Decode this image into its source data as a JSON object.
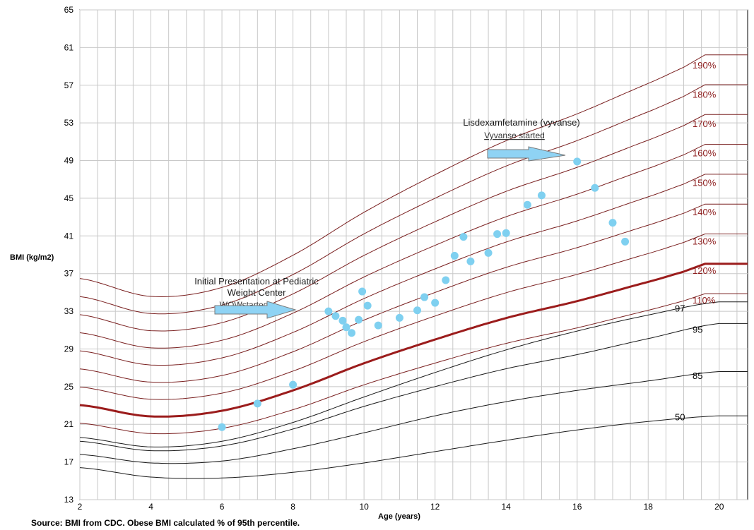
{
  "chart_data": {
    "type": "line",
    "ylabel": "BMI (kg/m2)",
    "xlabel": "Age (years)",
    "xlim": [
      2,
      20.8
    ],
    "ylim": [
      13,
      65
    ],
    "x_ticks": [
      2,
      4,
      6,
      8,
      10,
      12,
      14,
      16,
      18,
      20
    ],
    "y_ticks": [
      13,
      17,
      21,
      25,
      29,
      33,
      37,
      41,
      45,
      49,
      53,
      57,
      61,
      65
    ],
    "grid": true,
    "source_note": "Source: BMI from CDC. Obese BMI calculated % of 95th percentile.",
    "colors": {
      "percent_curve": "#7a2020",
      "reference_curve": "#9b1c1c",
      "percentile_curve": "#1a1a1a",
      "points": "#7fd0f0",
      "arrow": "#8fd3f4"
    },
    "percentile_curves": [
      {
        "name": "50",
        "ages": [
          2,
          4,
          6,
          8,
          10,
          12,
          14,
          16,
          18,
          20
        ],
        "bmi": [
          16.4,
          15.4,
          15.3,
          15.9,
          16.9,
          18.1,
          19.3,
          20.4,
          21.3,
          21.9
        ]
      },
      {
        "name": "85",
        "ages": [
          2,
          4,
          6,
          8,
          10,
          12,
          14,
          16,
          18,
          20
        ],
        "bmi": [
          17.8,
          16.9,
          17.1,
          18.4,
          20.1,
          21.9,
          23.4,
          24.6,
          25.6,
          26.6
        ]
      },
      {
        "name": "95",
        "ages": [
          2,
          4,
          6,
          8,
          10,
          12,
          14,
          16,
          18,
          20
        ],
        "bmi": [
          19.2,
          18.2,
          18.7,
          20.5,
          22.9,
          25.0,
          26.9,
          28.4,
          30.1,
          31.7
        ]
      },
      {
        "name": "97",
        "ages": [
          2,
          4,
          6,
          8,
          10,
          12,
          14,
          16,
          18,
          20
        ],
        "bmi": [
          19.6,
          18.6,
          19.2,
          21.2,
          23.9,
          26.5,
          28.9,
          30.9,
          32.6,
          34.0
        ]
      }
    ],
    "percent_curves": [
      {
        "name": "110%",
        "factor": 1.1
      },
      {
        "name": "120%",
        "factor": 1.2,
        "emphasized": true
      },
      {
        "name": "130%",
        "factor": 1.3
      },
      {
        "name": "140%",
        "factor": 1.4
      },
      {
        "name": "150%",
        "factor": 1.5
      },
      {
        "name": "160%",
        "factor": 1.6
      },
      {
        "name": "170%",
        "factor": 1.7
      },
      {
        "name": "180%",
        "factor": 1.8
      },
      {
        "name": "190%",
        "factor": 1.9
      }
    ],
    "points": [
      {
        "age": 6.0,
        "bmi": 20.7
      },
      {
        "age": 7.0,
        "bmi": 23.2
      },
      {
        "age": 8.0,
        "bmi": 25.2
      },
      {
        "age": 9.0,
        "bmi": 33.0
      },
      {
        "age": 9.2,
        "bmi": 32.5
      },
      {
        "age": 9.4,
        "bmi": 32.0
      },
      {
        "age": 9.5,
        "bmi": 31.3
      },
      {
        "age": 9.65,
        "bmi": 30.7
      },
      {
        "age": 9.85,
        "bmi": 32.1
      },
      {
        "age": 9.95,
        "bmi": 35.1
      },
      {
        "age": 10.1,
        "bmi": 33.6
      },
      {
        "age": 10.4,
        "bmi": 31.5
      },
      {
        "age": 11.0,
        "bmi": 32.3
      },
      {
        "age": 11.5,
        "bmi": 33.1
      },
      {
        "age": 11.7,
        "bmi": 34.5
      },
      {
        "age": 12.0,
        "bmi": 33.9
      },
      {
        "age": 12.3,
        "bmi": 36.3
      },
      {
        "age": 12.55,
        "bmi": 38.9
      },
      {
        "age": 12.8,
        "bmi": 40.9
      },
      {
        "age": 13.0,
        "bmi": 38.3
      },
      {
        "age": 13.5,
        "bmi": 39.2
      },
      {
        "age": 13.75,
        "bmi": 41.2
      },
      {
        "age": 14.0,
        "bmi": 41.3
      },
      {
        "age": 14.6,
        "bmi": 44.3
      },
      {
        "age": 15.0,
        "bmi": 45.3
      },
      {
        "age": 16.0,
        "bmi": 48.9
      },
      {
        "age": 16.5,
        "bmi": 46.1
      },
      {
        "age": 17.0,
        "bmi": 42.4
      },
      {
        "age": 17.35,
        "bmi": 40.4
      }
    ],
    "annotations": [
      {
        "lines": [
          "Initial Presentation at Pediatric",
          "Weight Center"
        ],
        "sub": "WOWstarted"
      },
      {
        "lines": [
          "Lisdexamfetamine (vyvanse)"
        ],
        "sub": "Vyvanse started"
      }
    ]
  }
}
